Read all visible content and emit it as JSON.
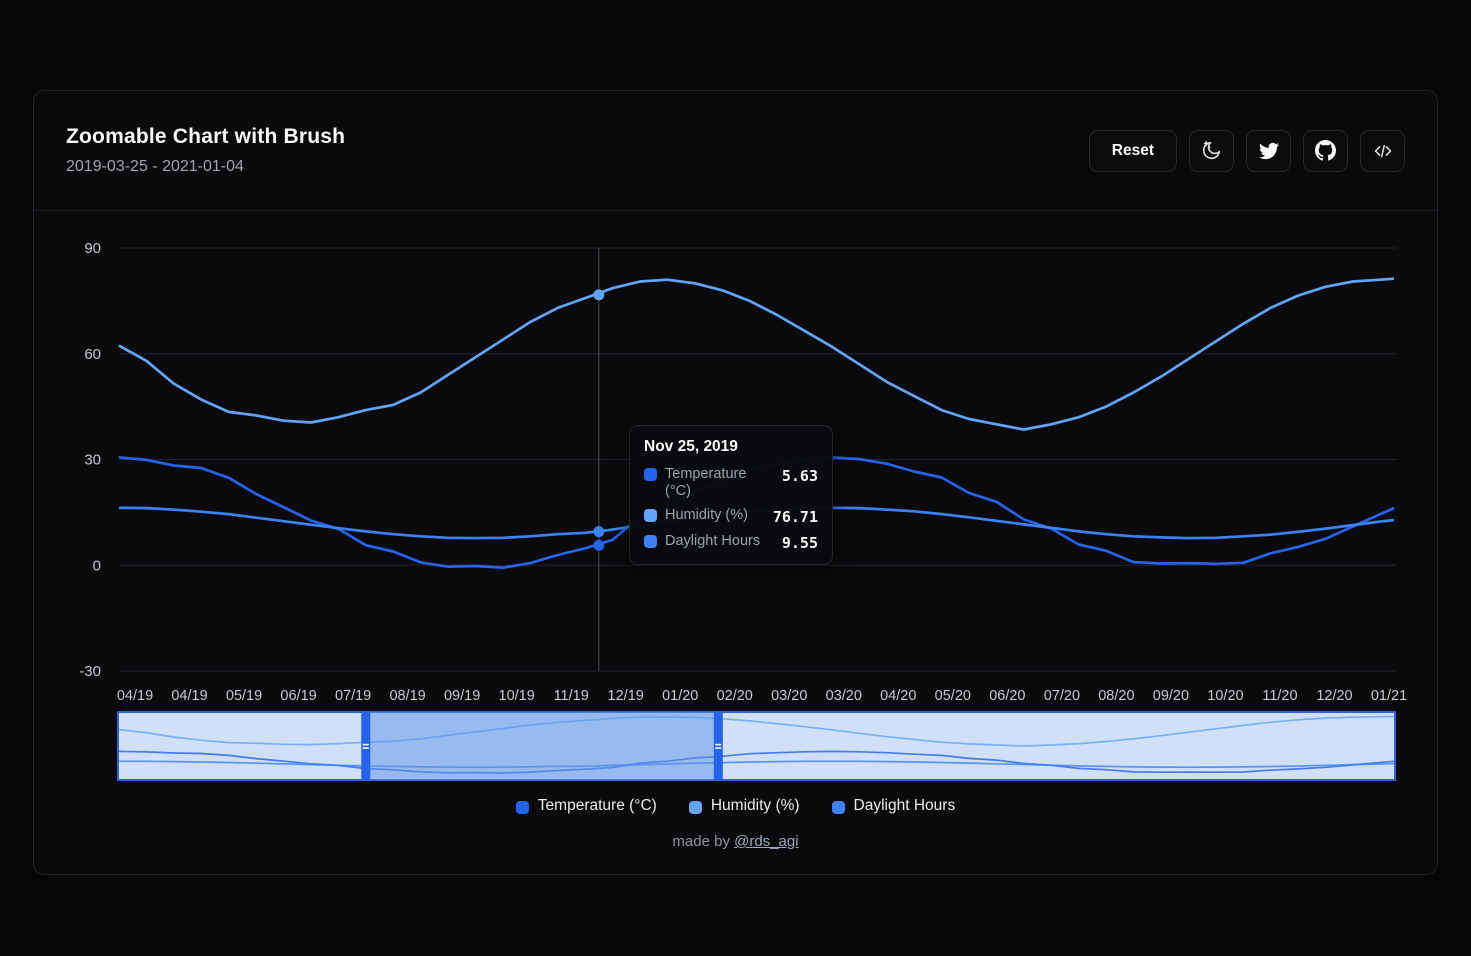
{
  "header": {
    "title": "Zoomable Chart with Brush",
    "date_range": "2019-03-25 - 2021-01-04",
    "reset_label": "Reset",
    "icon_buttons": [
      "moon-star-icon",
      "twitter-icon",
      "github-icon",
      "code-icon"
    ]
  },
  "tooltip": {
    "title": "Nov 25, 2019",
    "rows": [
      {
        "label": "Temperature (°C)",
        "value": "5.63"
      },
      {
        "label": "Humidity (%)",
        "value": "76.71"
      },
      {
        "label": "Daylight Hours",
        "value": "9.55"
      }
    ]
  },
  "legend": {
    "items": [
      {
        "label": "Temperature (°C)"
      },
      {
        "label": "Humidity (%)"
      },
      {
        "label": "Daylight Hours"
      }
    ]
  },
  "footer": {
    "made_by": "made by",
    "author": "@rds_agi"
  },
  "chart_data": {
    "type": "line",
    "title": "Zoomable Chart with Brush",
    "x_axis": {
      "start_date": "2019-03-25",
      "end_date": "2021-01-04",
      "tick_labels": [
        "04/19",
        "04/19",
        "05/19",
        "06/19",
        "07/19",
        "08/19",
        "09/19",
        "10/19",
        "11/19",
        "12/19",
        "01/20",
        "02/20",
        "03/20",
        "03/20",
        "04/20",
        "05/20",
        "06/20",
        "07/20",
        "08/20",
        "09/20",
        "10/20",
        "11/20",
        "12/20",
        "01/21"
      ]
    },
    "y_axis": {
      "ticks": [
        90,
        60,
        30,
        0,
        -30
      ],
      "range": [
        -30,
        90
      ]
    },
    "grid": "horizontal",
    "legend_position": "bottom",
    "total_days": 651,
    "days": [
      0,
      14,
      28,
      42,
      56,
      70,
      84,
      98,
      112,
      126,
      140,
      154,
      168,
      182,
      196,
      210,
      224,
      238,
      252,
      266,
      280,
      294,
      308,
      322,
      336,
      350,
      364,
      378,
      392,
      406,
      420,
      434,
      448,
      462,
      476,
      490,
      504,
      518,
      532,
      546,
      560,
      574,
      588,
      602,
      616,
      630,
      644,
      651
    ],
    "series": [
      {
        "name": "Temperature (°C)",
        "color": "#2563eb",
        "values": [
          30.6,
          29.9,
          28.3,
          27.6,
          24.8,
          20.2,
          16.5,
          12.7,
          10.3,
          5.7,
          3.9,
          0.8,
          -0.4,
          -0.2,
          -0.7,
          0.6,
          2.9,
          4.8,
          7.2,
          13.7,
          16.4,
          21.2,
          23.5,
          27.3,
          28.7,
          30.0,
          30.6,
          30.1,
          28.8,
          26.6,
          24.9,
          20.5,
          18.0,
          13.0,
          10.4,
          5.9,
          4.1,
          0.9,
          0.5,
          0.6,
          0.4,
          0.7,
          3.4,
          5.2,
          7.5,
          11.0,
          14.5,
          16.2
        ]
      },
      {
        "name": "Humidity (%)",
        "color": "#60a5fa",
        "values": [
          62.3,
          58.0,
          51.5,
          47.0,
          43.5,
          42.5,
          41.0,
          40.5,
          42.0,
          44.0,
          45.5,
          49.0,
          54.0,
          59.0,
          64.0,
          69.0,
          73.0,
          75.8,
          78.6,
          80.5,
          81.0,
          80.0,
          78.0,
          75.0,
          71.0,
          66.5,
          62.0,
          57.0,
          52.0,
          48.0,
          44.0,
          41.5,
          40.0,
          38.5,
          40.0,
          42.0,
          45.0,
          49.0,
          53.5,
          58.5,
          63.5,
          68.5,
          73.0,
          76.5,
          79.0,
          80.5,
          81.0,
          81.3
        ]
      },
      {
        "name": "Daylight Hours",
        "color": "#3b82f6",
        "values": [
          16.3,
          16.2,
          15.8,
          15.2,
          14.5,
          13.5,
          12.5,
          11.5,
          10.5,
          9.6,
          8.8,
          8.2,
          7.8,
          7.7,
          7.8,
          8.2,
          8.8,
          9.2,
          10.1,
          11.4,
          12.5,
          13.5,
          14.4,
          15.2,
          15.8,
          16.2,
          16.3,
          16.2,
          15.8,
          15.3,
          14.5,
          13.6,
          12.6,
          11.6,
          10.6,
          9.6,
          8.8,
          8.2,
          7.9,
          7.7,
          7.8,
          8.2,
          8.7,
          9.5,
          10.4,
          11.4,
          12.4,
          12.8
        ]
      }
    ],
    "cursor": {
      "day": 245,
      "label": "Nov 25, 2019",
      "values": [
        5.63,
        76.71,
        9.55
      ]
    },
    "brush": {
      "selection_days": [
        126,
        306
      ],
      "track_color": "#cfe0f8",
      "selection_color": "#5f93e6",
      "handle_color": "#2563eb",
      "border_color": "#2f62d8"
    }
  }
}
